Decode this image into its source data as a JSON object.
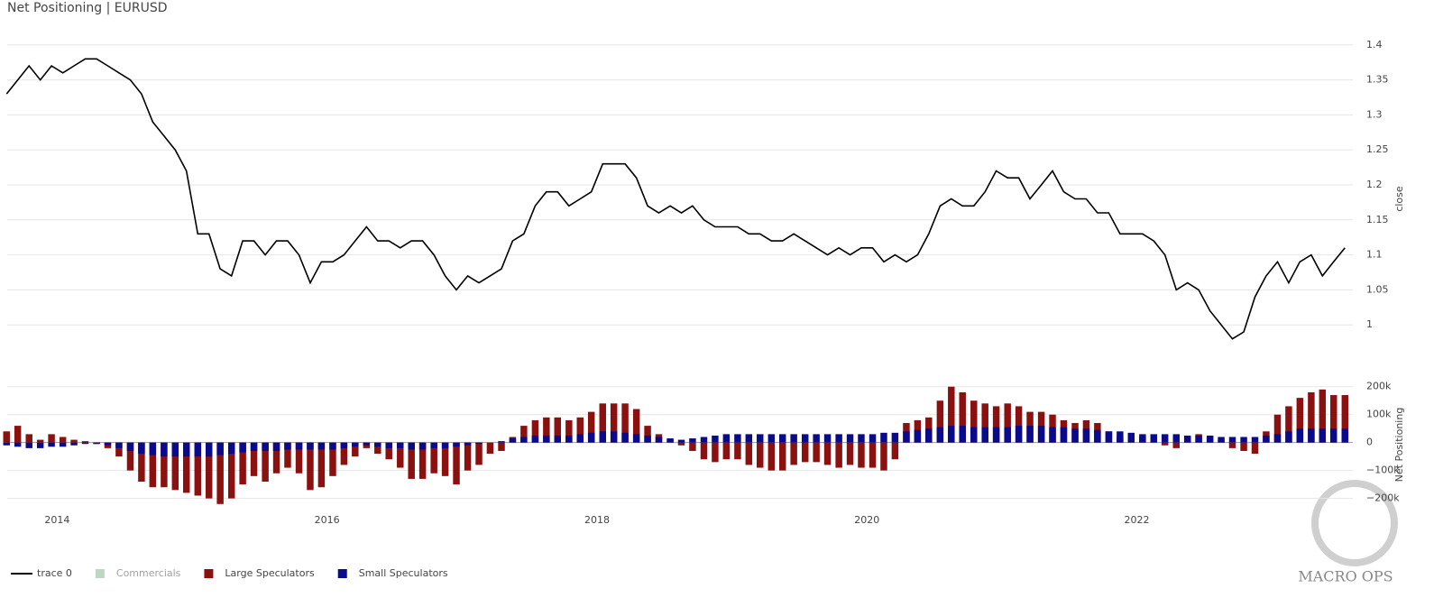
{
  "title": "Net Positioning | EURUSD",
  "logo": {
    "name": "MACRO OPS"
  },
  "chart_data": [
    {
      "type": "line",
      "y_label": "close",
      "xlim": [
        2013.63,
        2023.6
      ],
      "ylim": [
        0.95,
        1.41
      ],
      "yticks": [
        1,
        1.05,
        1.1,
        1.15,
        1.2,
        1.25,
        1.3,
        1.35,
        1.4
      ],
      "grid": true,
      "x": [
        2013.625,
        2013.708,
        2013.792,
        2013.875,
        2013.958,
        2014.042,
        2014.125,
        2014.208,
        2014.292,
        2014.375,
        2014.458,
        2014.542,
        2014.625,
        2014.708,
        2014.792,
        2014.875,
        2014.958,
        2015.042,
        2015.125,
        2015.208,
        2015.292,
        2015.375,
        2015.458,
        2015.542,
        2015.625,
        2015.708,
        2015.792,
        2015.875,
        2015.958,
        2016.042,
        2016.125,
        2016.208,
        2016.292,
        2016.375,
        2016.458,
        2016.542,
        2016.625,
        2016.708,
        2016.792,
        2016.875,
        2016.958,
        2017.042,
        2017.125,
        2017.208,
        2017.292,
        2017.375,
        2017.458,
        2017.542,
        2017.625,
        2017.708,
        2017.792,
        2017.875,
        2017.958,
        2018.042,
        2018.125,
        2018.208,
        2018.292,
        2018.375,
        2018.458,
        2018.542,
        2018.625,
        2018.708,
        2018.792,
        2018.875,
        2018.958,
        2019.042,
        2019.125,
        2019.208,
        2019.292,
        2019.375,
        2019.458,
        2019.542,
        2019.625,
        2019.708,
        2019.792,
        2019.875,
        2019.958,
        2020.042,
        2020.125,
        2020.208,
        2020.292,
        2020.375,
        2020.458,
        2020.542,
        2020.625,
        2020.708,
        2020.792,
        2020.875,
        2020.958,
        2021.042,
        2021.125,
        2021.208,
        2021.292,
        2021.375,
        2021.458,
        2021.542,
        2021.625,
        2021.708,
        2021.792,
        2021.875,
        2021.958,
        2022.042,
        2022.125,
        2022.208,
        2022.292,
        2022.375,
        2022.458,
        2022.542,
        2022.625,
        2022.708,
        2022.792,
        2022.875,
        2022.958,
        2023.042,
        2023.125,
        2023.208,
        2023.292,
        2023.375,
        2023.458,
        2023.542
      ],
      "series": [
        {
          "name": "trace 0",
          "color": "#000000",
          "values": [
            1.33,
            1.35,
            1.37,
            1.35,
            1.37,
            1.36,
            1.37,
            1.38,
            1.38,
            1.37,
            1.36,
            1.35,
            1.33,
            1.29,
            1.27,
            1.25,
            1.22,
            1.13,
            1.13,
            1.08,
            1.07,
            1.12,
            1.12,
            1.1,
            1.12,
            1.12,
            1.1,
            1.06,
            1.09,
            1.09,
            1.1,
            1.12,
            1.14,
            1.12,
            1.12,
            1.11,
            1.12,
            1.12,
            1.1,
            1.07,
            1.05,
            1.07,
            1.06,
            1.07,
            1.08,
            1.12,
            1.13,
            1.17,
            1.19,
            1.19,
            1.17,
            1.18,
            1.19,
            1.23,
            1.23,
            1.23,
            1.21,
            1.17,
            1.16,
            1.17,
            1.16,
            1.17,
            1.15,
            1.14,
            1.14,
            1.14,
            1.13,
            1.13,
            1.12,
            1.12,
            1.13,
            1.12,
            1.11,
            1.1,
            1.11,
            1.1,
            1.11,
            1.11,
            1.09,
            1.1,
            1.09,
            1.1,
            1.13,
            1.17,
            1.18,
            1.17,
            1.17,
            1.19,
            1.22,
            1.21,
            1.21,
            1.18,
            1.2,
            1.22,
            1.19,
            1.18,
            1.18,
            1.16,
            1.16,
            1.13,
            1.13,
            1.13,
            1.12,
            1.1,
            1.05,
            1.06,
            1.05,
            1.02,
            1.0,
            0.98,
            0.99,
            1.04,
            1.07,
            1.09,
            1.06,
            1.09,
            1.1,
            1.07,
            1.09,
            1.11
          ]
        }
      ]
    },
    {
      "type": "bar",
      "y_label": "Net Positioning",
      "xlim": [
        2013.63,
        2023.6
      ],
      "xticks": [
        2014,
        2016,
        2018,
        2020,
        2022
      ],
      "ylim": [
        -240000,
        225000
      ],
      "yticks": [
        {
          "value": -200000,
          "label": "−200k"
        },
        {
          "value": -100000,
          "label": "−100k"
        },
        0,
        {
          "value": 100000,
          "label": "100k"
        },
        {
          "value": 200000,
          "label": "200k"
        }
      ],
      "grid": true,
      "legend": "bottom-left",
      "x": [
        2013.625,
        2013.708,
        2013.792,
        2013.875,
        2013.958,
        2014.042,
        2014.125,
        2014.208,
        2014.292,
        2014.375,
        2014.458,
        2014.542,
        2014.625,
        2014.708,
        2014.792,
        2014.875,
        2014.958,
        2015.042,
        2015.125,
        2015.208,
        2015.292,
        2015.375,
        2015.458,
        2015.542,
        2015.625,
        2015.708,
        2015.792,
        2015.875,
        2015.958,
        2016.042,
        2016.125,
        2016.208,
        2016.292,
        2016.375,
        2016.458,
        2016.542,
        2016.625,
        2016.708,
        2016.792,
        2016.875,
        2016.958,
        2017.042,
        2017.125,
        2017.208,
        2017.292,
        2017.375,
        2017.458,
        2017.542,
        2017.625,
        2017.708,
        2017.792,
        2017.875,
        2017.958,
        2018.042,
        2018.125,
        2018.208,
        2018.292,
        2018.375,
        2018.458,
        2018.542,
        2018.625,
        2018.708,
        2018.792,
        2018.875,
        2018.958,
        2019.042,
        2019.125,
        2019.208,
        2019.292,
        2019.375,
        2019.458,
        2019.542,
        2019.625,
        2019.708,
        2019.792,
        2019.875,
        2019.958,
        2020.042,
        2020.125,
        2020.208,
        2020.292,
        2020.375,
        2020.458,
        2020.542,
        2020.625,
        2020.708,
        2020.792,
        2020.875,
        2020.958,
        2021.042,
        2021.125,
        2021.208,
        2021.292,
        2021.375,
        2021.458,
        2021.542,
        2021.625,
        2021.708,
        2021.792,
        2021.875,
        2021.958,
        2022.042,
        2022.125,
        2022.208,
        2022.292,
        2022.375,
        2022.458,
        2022.542,
        2022.625,
        2022.708,
        2022.792,
        2022.875,
        2022.958,
        2023.042,
        2023.125,
        2023.208,
        2023.292,
        2023.375,
        2023.458,
        2023.542
      ],
      "series": [
        {
          "name": "Commercials",
          "color": "#7fb08a",
          "visible": "legendonly"
        },
        {
          "name": "Large Speculators",
          "color": "#8b1010",
          "values": [
            40000,
            60000,
            30000,
            10000,
            30000,
            20000,
            10000,
            5000,
            -5000,
            -20000,
            -50000,
            -100000,
            -140000,
            -160000,
            -160000,
            -170000,
            -180000,
            -190000,
            -200000,
            -220000,
            -200000,
            -150000,
            -120000,
            -140000,
            -110000,
            -90000,
            -110000,
            -170000,
            -160000,
            -120000,
            -80000,
            -50000,
            -20000,
            -40000,
            -60000,
            -90000,
            -130000,
            -130000,
            -110000,
            -120000,
            -150000,
            -100000,
            -80000,
            -40000,
            -30000,
            20000,
            60000,
            80000,
            90000,
            90000,
            80000,
            90000,
            110000,
            140000,
            140000,
            140000,
            120000,
            60000,
            30000,
            10000,
            -10000,
            -30000,
            -60000,
            -70000,
            -60000,
            -60000,
            -80000,
            -90000,
            -100000,
            -100000,
            -80000,
            -70000,
            -70000,
            -80000,
            -90000,
            -80000,
            -90000,
            -90000,
            -100000,
            -60000,
            70000,
            80000,
            90000,
            150000,
            200000,
            180000,
            150000,
            140000,
            130000,
            140000,
            130000,
            110000,
            110000,
            100000,
            80000,
            70000,
            80000,
            70000,
            40000,
            20000,
            10000,
            20000,
            10000,
            -10000,
            -20000,
            20000,
            30000,
            20000,
            10000,
            -20000,
            -30000,
            -40000,
            40000,
            100000,
            130000,
            160000,
            180000,
            190000,
            170000,
            170000
          ]
        },
        {
          "name": "Small Speculators",
          "color": "#0a0a8c",
          "values": [
            -10000,
            -15000,
            -20000,
            -20000,
            -15000,
            -15000,
            -10000,
            -5000,
            -5000,
            -10000,
            -20000,
            -30000,
            -40000,
            -45000,
            -50000,
            -50000,
            -50000,
            -50000,
            -50000,
            -45000,
            -40000,
            -35000,
            -30000,
            -30000,
            -30000,
            -25000,
            -25000,
            -25000,
            -25000,
            -25000,
            -20000,
            -15000,
            -10000,
            -15000,
            -20000,
            -20000,
            -25000,
            -25000,
            -20000,
            -20000,
            -15000,
            -10000,
            -5000,
            0,
            5000,
            15000,
            20000,
            25000,
            25000,
            25000,
            25000,
            30000,
            35000,
            40000,
            40000,
            35000,
            30000,
            25000,
            20000,
            15000,
            10000,
            15000,
            20000,
            25000,
            30000,
            30000,
            30000,
            30000,
            30000,
            30000,
            30000,
            30000,
            30000,
            30000,
            30000,
            30000,
            30000,
            30000,
            35000,
            35000,
            40000,
            45000,
            50000,
            55000,
            60000,
            60000,
            55000,
            55000,
            55000,
            55000,
            60000,
            60000,
            60000,
            55000,
            55000,
            50000,
            50000,
            45000,
            40000,
            40000,
            35000,
            30000,
            30000,
            30000,
            30000,
            25000,
            25000,
            25000,
            20000,
            20000,
            20000,
            20000,
            25000,
            30000,
            40000,
            50000,
            50000,
            50000,
            50000,
            50000
          ]
        }
      ]
    }
  ]
}
